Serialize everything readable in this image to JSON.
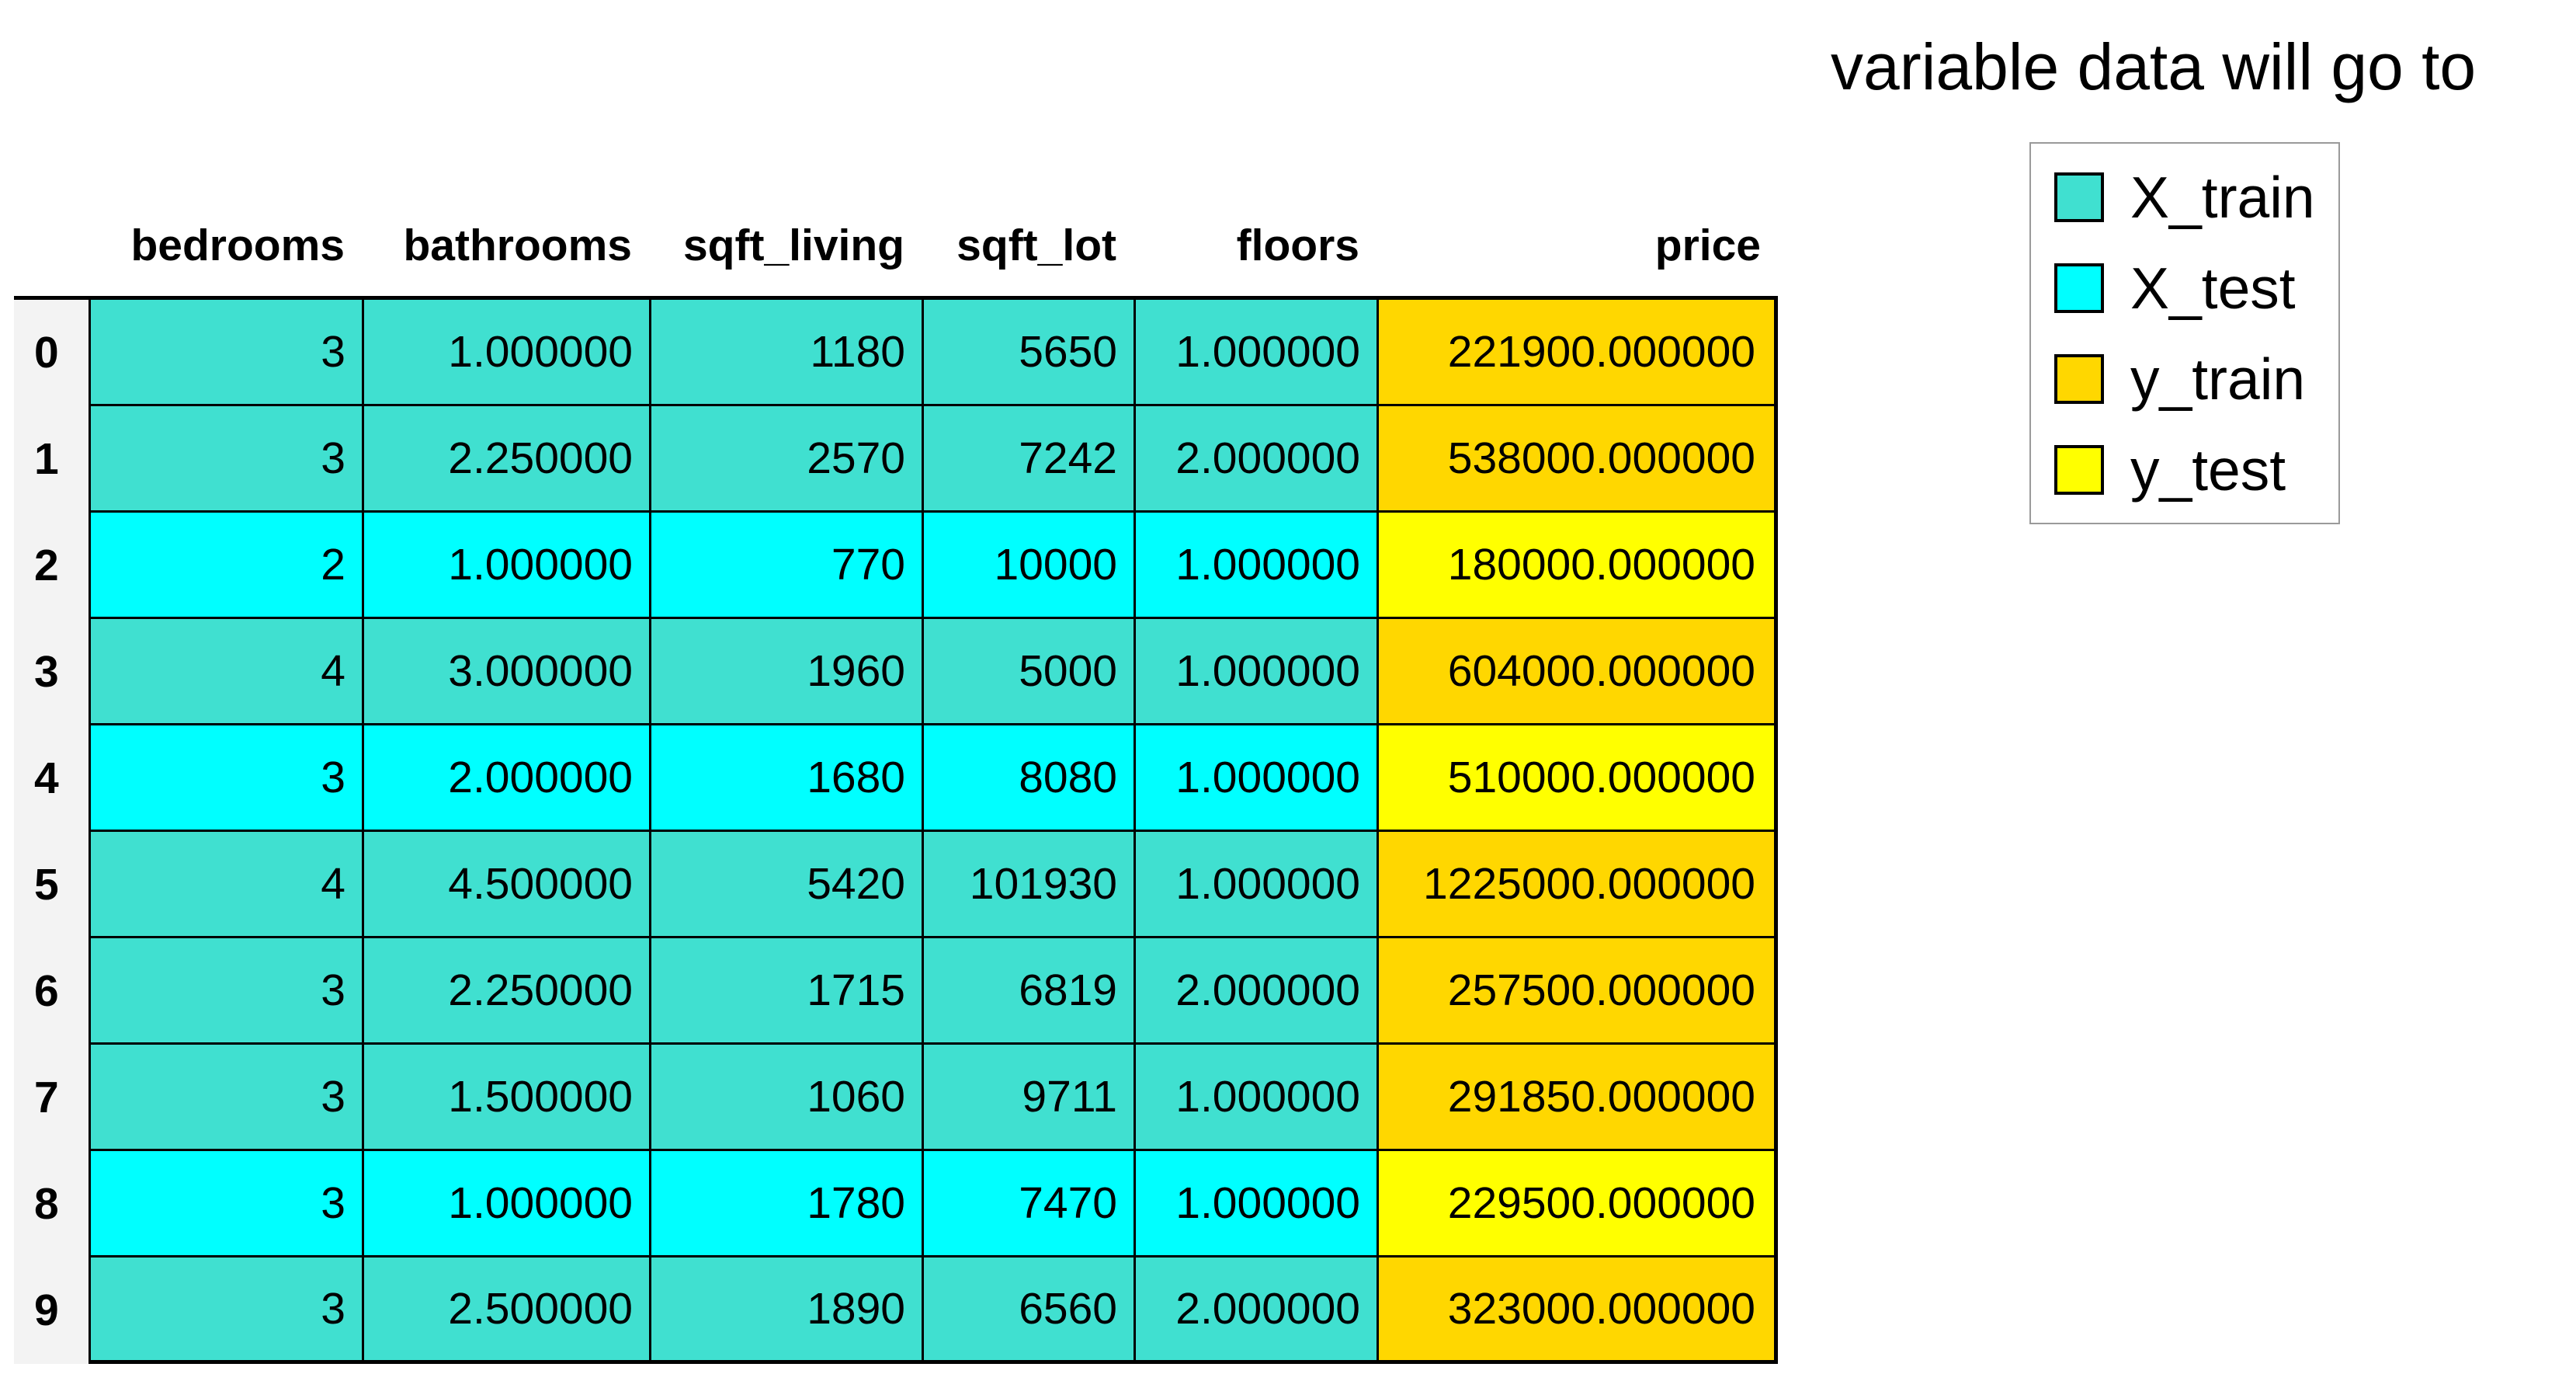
{
  "legend": {
    "title": "variable data will go to",
    "items": [
      {
        "label": "X_train",
        "color": "#40e0d0"
      },
      {
        "label": "X_test",
        "color": "#00ffff"
      },
      {
        "label": "y_train",
        "color": "#ffd700"
      },
      {
        "label": "y_test",
        "color": "#ffff00"
      }
    ]
  },
  "table": {
    "columns": [
      "bedrooms",
      "bathrooms",
      "sqft_living",
      "sqft_lot",
      "floors",
      "price"
    ],
    "rows": [
      {
        "index": "0",
        "split": "train",
        "cells": [
          "3",
          "1.000000",
          "1180",
          "5650",
          "1.000000",
          "221900.000000"
        ]
      },
      {
        "index": "1",
        "split": "train",
        "cells": [
          "3",
          "2.250000",
          "2570",
          "7242",
          "2.000000",
          "538000.000000"
        ]
      },
      {
        "index": "2",
        "split": "test",
        "cells": [
          "2",
          "1.000000",
          "770",
          "10000",
          "1.000000",
          "180000.000000"
        ]
      },
      {
        "index": "3",
        "split": "train",
        "cells": [
          "4",
          "3.000000",
          "1960",
          "5000",
          "1.000000",
          "604000.000000"
        ]
      },
      {
        "index": "4",
        "split": "test",
        "cells": [
          "3",
          "2.000000",
          "1680",
          "8080",
          "1.000000",
          "510000.000000"
        ]
      },
      {
        "index": "5",
        "split": "train",
        "cells": [
          "4",
          "4.500000",
          "5420",
          "101930",
          "1.000000",
          "1225000.000000"
        ]
      },
      {
        "index": "6",
        "split": "train",
        "cells": [
          "3",
          "2.250000",
          "1715",
          "6819",
          "2.000000",
          "257500.000000"
        ]
      },
      {
        "index": "7",
        "split": "train",
        "cells": [
          "3",
          "1.500000",
          "1060",
          "9711",
          "1.000000",
          "291850.000000"
        ]
      },
      {
        "index": "8",
        "split": "test",
        "cells": [
          "3",
          "1.000000",
          "1780",
          "7470",
          "1.000000",
          "229500.000000"
        ]
      },
      {
        "index": "9",
        "split": "train",
        "cells": [
          "3",
          "2.500000",
          "1890",
          "6560",
          "2.000000",
          "323000.000000"
        ]
      }
    ]
  }
}
